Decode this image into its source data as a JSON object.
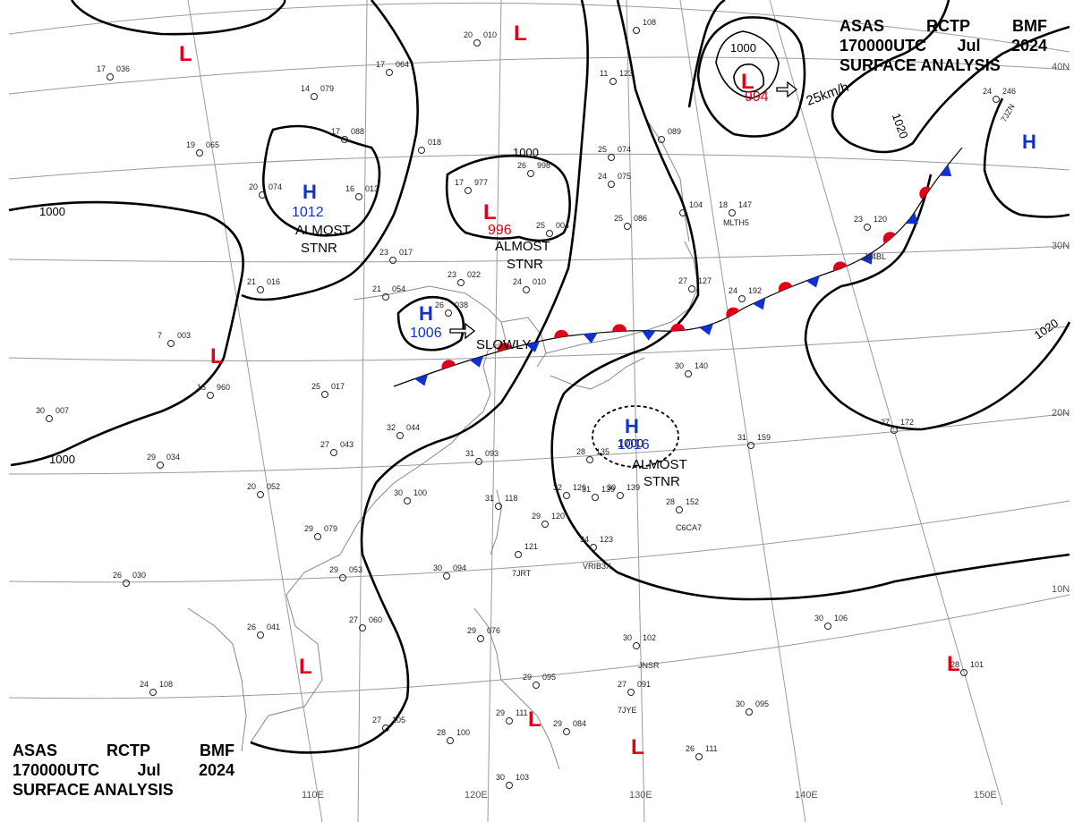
{
  "header_top": {
    "line1": [
      "ASAS",
      "RCTP",
      "BMF"
    ],
    "line2": [
      "170000UTC",
      "Jul",
      "2024"
    ],
    "line3": "SURFACE ANALYSIS"
  },
  "header_bottom": {
    "line1": [
      "ASAS",
      "RCTP",
      "BMF"
    ],
    "line2": [
      "170000UTC",
      "Jul",
      "2024"
    ],
    "line3": "SURFACE ANALYSIS"
  },
  "colors": {
    "low": "#e0001a",
    "high": "#1030d0",
    "line": "#000000",
    "grid": "#9a9a9a"
  },
  "latitude_labels": [
    "40N",
    "30N",
    "20N",
    "10N"
  ],
  "longitude_labels": [
    "110E",
    "120E",
    "130E",
    "140E",
    "150E"
  ],
  "pressure_systems": [
    {
      "type": "L",
      "pressure": null
    },
    {
      "type": "L",
      "pressure": null
    },
    {
      "type": "L",
      "pressure": null
    },
    {
      "type": "L",
      "pressure": null
    },
    {
      "type": "L",
      "pressure": null
    },
    {
      "type": "L",
      "pressure": null
    },
    {
      "type": "L",
      "pressure": null
    },
    {
      "type": "L",
      "pressure": "994"
    },
    {
      "type": "L",
      "pressure": "996"
    },
    {
      "type": "H",
      "pressure": "1012"
    },
    {
      "type": "H",
      "pressure": "1006"
    },
    {
      "type": "H",
      "pressure": "1016"
    },
    {
      "type": "H",
      "pressure": null
    }
  ],
  "motion_notes": [
    "ALMOST",
    "STNR",
    "ALMOST",
    "STNR",
    "ALMOST",
    "STNR",
    "SLOWLY",
    "25km/h"
  ],
  "isobar_labels": [
    "1000",
    "1000",
    "1000",
    "1000",
    "1000",
    "1020",
    "1020"
  ],
  "stations": [
    {
      "t": "17",
      "p": "036"
    },
    {
      "t": "14",
      "p": "079"
    },
    {
      "t": "17",
      "p": "064"
    },
    {
      "t": "20",
      "p": "010"
    },
    {
      "t": "19",
      "p": "065"
    },
    {
      "t": "20",
      "p": "074"
    },
    {
      "t": "17",
      "p": "088"
    },
    {
      "t": "16",
      "p": "013"
    },
    {
      "t": "",
      "p": "018"
    },
    {
      "t": "17",
      "p": "977"
    },
    {
      "t": "26",
      "p": "998"
    },
    {
      "t": "21",
      "p": "016"
    },
    {
      "t": "23",
      "p": "017"
    },
    {
      "t": "23",
      "p": "022"
    },
    {
      "t": "24",
      "p": "010"
    },
    {
      "t": "25",
      "p": "004"
    },
    {
      "t": "21",
      "p": "054"
    },
    {
      "t": "7",
      "p": "003"
    },
    {
      "t": "26",
      "p": "038"
    },
    {
      "t": "25",
      "p": "017"
    },
    {
      "t": "15",
      "p": "960"
    },
    {
      "t": "30",
      "p": "007"
    },
    {
      "t": "29",
      "p": "034"
    },
    {
      "t": "32",
      "p": "044"
    },
    {
      "t": "27",
      "p": "043"
    },
    {
      "t": "31",
      "p": "093"
    },
    {
      "t": "20",
      "p": "052"
    },
    {
      "t": "30",
      "p": "100"
    },
    {
      "t": "31",
      "p": "118"
    },
    {
      "t": "29",
      "p": "120"
    },
    {
      "t": "30",
      "p": "094"
    },
    {
      "t": "29",
      "p": "079"
    },
    {
      "t": "29",
      "p": "053"
    },
    {
      "t": "26",
      "p": "030"
    },
    {
      "t": "27",
      "p": "060"
    },
    {
      "t": "26",
      "p": "041"
    },
    {
      "t": "24",
      "p": "108"
    },
    {
      "t": "27",
      "p": "105"
    },
    {
      "t": "28",
      "p": "100"
    },
    {
      "t": "29",
      "p": "111"
    },
    {
      "t": "29",
      "p": "076"
    },
    {
      "t": "29",
      "p": "095"
    },
    {
      "t": "29",
      "p": "084"
    },
    {
      "t": "30",
      "p": "103"
    },
    {
      "t": "25",
      "p": "086"
    },
    {
      "t": "25",
      "p": "074"
    },
    {
      "t": "24",
      "p": "075"
    },
    {
      "t": "",
      "p": "089"
    },
    {
      "t": "11",
      "p": "123"
    },
    {
      "t": "",
      "p": "108"
    },
    {
      "t": "",
      "p": "104"
    },
    {
      "t": "27",
      "p": "127"
    },
    {
      "t": "24",
      "p": "192"
    },
    {
      "t": "18",
      "p": "147"
    },
    {
      "t": "23",
      "p": "120"
    },
    {
      "t": "24",
      "p": "246"
    },
    {
      "t": "30",
      "p": "140"
    },
    {
      "t": "30",
      "p": "139"
    },
    {
      "t": "28",
      "p": "135"
    },
    {
      "t": "32",
      "p": "126"
    },
    {
      "t": "31",
      "p": "139"
    },
    {
      "t": "28",
      "p": "152"
    },
    {
      "t": "31",
      "p": "159"
    },
    {
      "t": "27",
      "p": "172"
    },
    {
      "t": "34",
      "p": "123"
    },
    {
      "t": "",
      "p": "121"
    },
    {
      "t": "30",
      "p": "102"
    },
    {
      "t": "27",
      "p": "091"
    },
    {
      "t": "30",
      "p": "095"
    },
    {
      "t": "30",
      "p": "106"
    },
    {
      "t": "28",
      "p": "101"
    },
    {
      "t": "26",
      "p": "111"
    }
  ],
  "ship_callsigns": [
    "MLTH5",
    "JJ4BL",
    "7JRT",
    "VRIB3X",
    "C6CA7",
    "JNSR",
    "7JYE",
    "7JZN"
  ]
}
